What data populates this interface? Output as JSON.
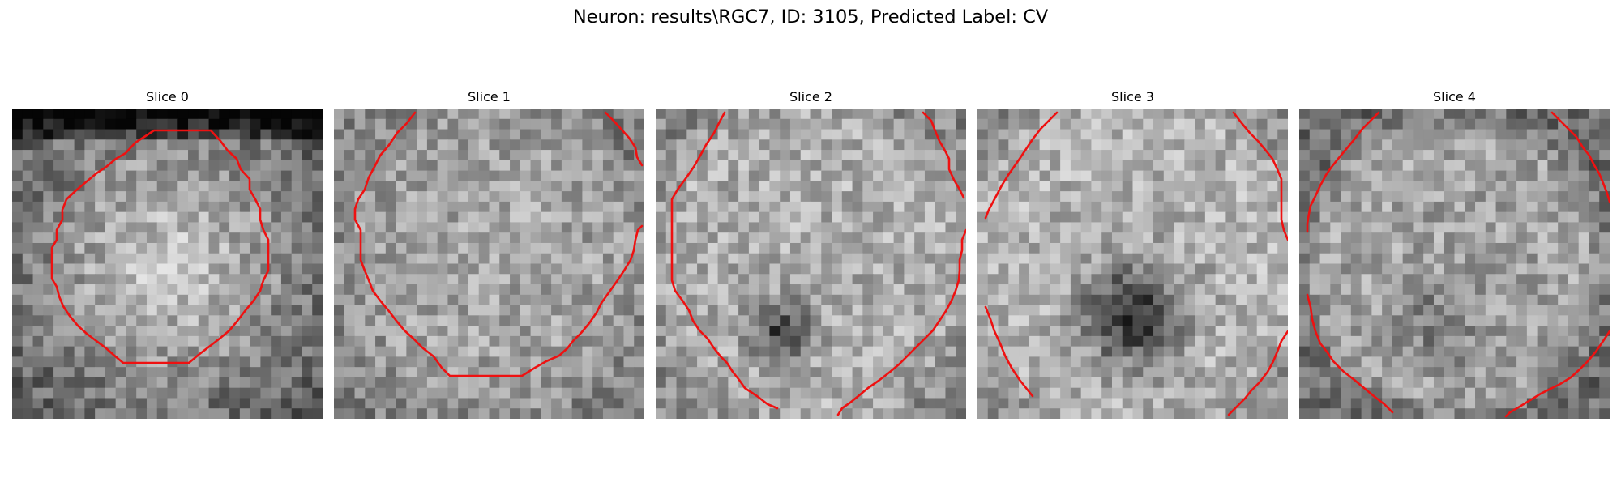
{
  "figure": {
    "title": "Neuron: results\\RGC7, ID: 3105, Predicted Label: CV",
    "contour_color": "#ee1111"
  },
  "panels": [
    {
      "title": "Slice 0",
      "pattern": "bright-disk"
    },
    {
      "title": "Slice 1",
      "pattern": "bright-disk-faint"
    },
    {
      "title": "Slice 2",
      "pattern": "dark-center-small"
    },
    {
      "title": "Slice 3",
      "pattern": "dark-center-large"
    },
    {
      "title": "Slice 4",
      "pattern": "dark-center-faint"
    }
  ]
}
